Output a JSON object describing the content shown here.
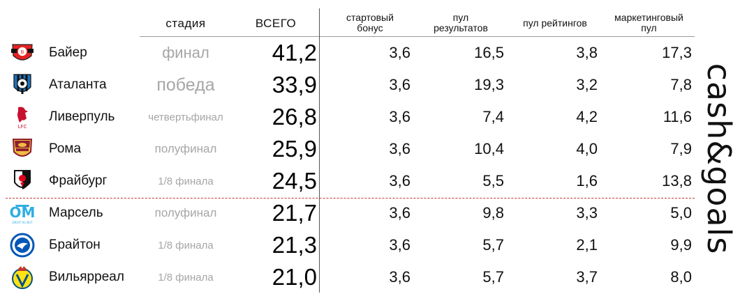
{
  "headers": {
    "stage": "стадия",
    "total": "ВСЕГО",
    "start_bonus": "стартовый\nбонус",
    "results_pool": "пул\nрезультатов",
    "ratings_pool": "пул рейтингов",
    "marketing_pool": "маркетинговый\nпул"
  },
  "brand": "cash&goals",
  "rows": [
    {
      "team": "Байер",
      "stage": "финал",
      "total": "41,2",
      "start_bonus": "3,6",
      "results_pool": "16,5",
      "ratings_pool": "3,8",
      "marketing_pool": "17,3",
      "logo": "bayer-leverkusen-crest-icon"
    },
    {
      "team": "Аталанта",
      "stage": "победа",
      "total": "33,9",
      "start_bonus": "3,6",
      "results_pool": "19,3",
      "ratings_pool": "3,2",
      "marketing_pool": "7,8",
      "logo": "atalanta-crest-icon"
    },
    {
      "team": "Ливерпуль",
      "stage": "четвертьфинал",
      "total": "26,8",
      "start_bonus": "3,6",
      "results_pool": "7,4",
      "ratings_pool": "4,2",
      "marketing_pool": "11,6",
      "logo": "liverpool-crest-icon"
    },
    {
      "team": "Рома",
      "stage": "полуфинал",
      "total": "25,9",
      "start_bonus": "3,6",
      "results_pool": "10,4",
      "ratings_pool": "4,0",
      "marketing_pool": "7,9",
      "logo": "roma-crest-icon"
    },
    {
      "team": "Фрайбург",
      "stage": "1/8 финала",
      "total": "24,5",
      "start_bonus": "3,6",
      "results_pool": "5,5",
      "ratings_pool": "1,6",
      "marketing_pool": "13,8",
      "logo": "freiburg-crest-icon"
    },
    {
      "team": "Марсель",
      "stage": "полуфинал",
      "total": "21,7",
      "start_bonus": "3,6",
      "results_pool": "9,8",
      "ratings_pool": "3,3",
      "marketing_pool": "5,0",
      "logo": "marseille-crest-icon"
    },
    {
      "team": "Брайтон",
      "stage": "1/8 финала",
      "total": "21,3",
      "start_bonus": "3,6",
      "results_pool": "5,7",
      "ratings_pool": "2,1",
      "marketing_pool": "9,9",
      "logo": "brighton-crest-icon"
    },
    {
      "team": "Вильярреал",
      "stage": "1/8 финала",
      "total": "21,0",
      "start_bonus": "3,6",
      "results_pool": "5,7",
      "ratings_pool": "3,7",
      "marketing_pool": "8,0",
      "logo": "villarreal-crest-icon"
    }
  ],
  "colors": {
    "stage_text": "#a6a6a6",
    "divider_dashed": "#c0392b",
    "header_rule": "#9a9a9a"
  }
}
